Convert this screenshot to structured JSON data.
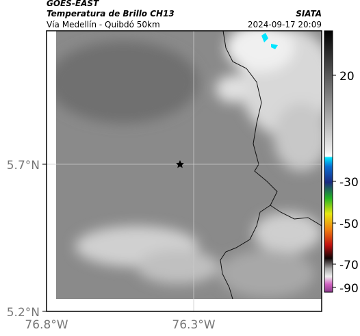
{
  "header": {
    "product": "GOES-EAST",
    "title": "Temperatura de Brillo CH13",
    "subtitle": "Vía Medellín - Quibdó 50km",
    "source": "SIATA",
    "timestamp": "2024-09-17 20:09"
  },
  "map": {
    "lat_ticks": [
      "5.7°N",
      "5.2°N"
    ],
    "lon_ticks": [
      "76.8°W",
      "76.3°W"
    ]
  },
  "colorbar": {
    "ticks": [
      "20",
      "-30",
      "-50",
      "-70",
      "-90"
    ]
  }
}
